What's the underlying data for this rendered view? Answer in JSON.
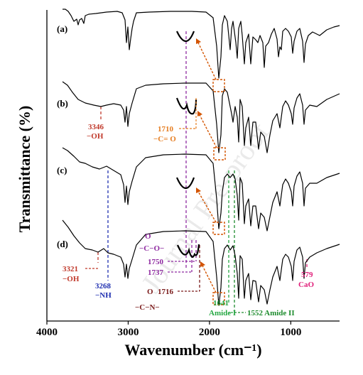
{
  "chart_data": {
    "type": "line",
    "title": "",
    "xlabel": "Wavenumber (cm⁻¹)",
    "ylabel": "Transmittance (%)",
    "xlim": [
      4000,
      400
    ],
    "x_reversed": true,
    "xticks": [
      4000,
      3000,
      2000,
      1000
    ],
    "grid": false,
    "legend": "none",
    "series": [
      {
        "name": "(a)",
        "color": "#000000"
      },
      {
        "name": "(b)",
        "color": "#000000"
      },
      {
        "name": "(c)",
        "color": "#000000"
      },
      {
        "name": "(d)",
        "color": "#000000"
      }
    ],
    "annotations": [
      {
        "trace": "(b)",
        "x": 3346,
        "text": "3346",
        "group": "−OH",
        "color": "#c0392b"
      },
      {
        "trace": "(b)",
        "x": 1710,
        "text": "1710",
        "group": "−C= O",
        "color": "#e67e22"
      },
      {
        "trace": "(d)",
        "x": 3321,
        "text": "3321",
        "group": "−OH",
        "color": "#c0392b"
      },
      {
        "trace": "(d)",
        "x": 3268,
        "text": "3268",
        "group": "−NH",
        "color": "#1f2fb0"
      },
      {
        "trace": "(d)",
        "x": 1750,
        "text": "1750",
        "group": "",
        "color": "#8e2aa0"
      },
      {
        "trace": "(d)",
        "x": 1737,
        "text": "1737",
        "group": "",
        "color": "#8e2aa0"
      },
      {
        "trace": "(d)",
        "x": 1716,
        "text": "1716",
        "group": "",
        "color": "#7a1a1a"
      },
      {
        "trace": "(d)",
        "x": 1641,
        "text": "1641",
        "group": "Amide I",
        "color": "#27a844"
      },
      {
        "trace": "(d)",
        "x": 1552,
        "text": "1552 Amide II",
        "group": "",
        "color": "#1e8c2e"
      },
      {
        "trace": "(d)",
        "x": 579,
        "text": "579",
        "group": "CaO",
        "color": "#e0207a"
      }
    ],
    "structure_labels": {
      "ester_o": "O",
      "ester_group": "−C−O−",
      "amide_o": "O",
      "amide_group": "−C−N−"
    },
    "watermark": "Journal Pre-proof"
  }
}
